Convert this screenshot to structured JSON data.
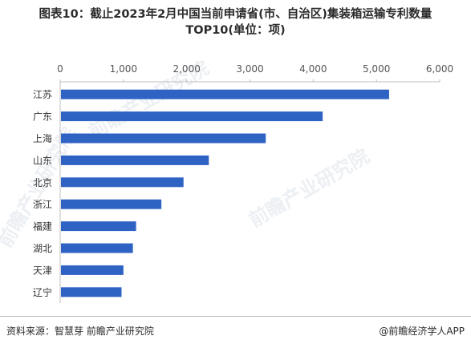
{
  "title": {
    "line1": "图表10：截止2023年2月中国当前申请省(市、自治区)集装箱运输专利数量",
    "line2": "TOP10(单位：项)"
  },
  "watermark": "前瞻产业研究院",
  "footer": {
    "source": "资料来源：智慧芽 前瞻产业研究院",
    "brand": "@前瞻经济学人APP"
  },
  "chart_data": {
    "type": "bar",
    "orientation": "horizontal",
    "categories": [
      "江苏",
      "广东",
      "上海",
      "山东",
      "北京",
      "浙江",
      "福建",
      "湖北",
      "天津",
      "辽宁"
    ],
    "values": [
      5200,
      4150,
      3250,
      2350,
      1950,
      1600,
      1200,
      1150,
      1000,
      970
    ],
    "xlim": [
      0,
      6000
    ],
    "xticks": [
      "0",
      "1,000",
      "2,000",
      "3,000",
      "4,000",
      "5,000",
      "6,000"
    ],
    "tick_values": [
      0,
      1000,
      2000,
      3000,
      4000,
      5000,
      6000
    ],
    "axis_position": "top",
    "grid": false,
    "bar_color": "#2e63c4"
  }
}
